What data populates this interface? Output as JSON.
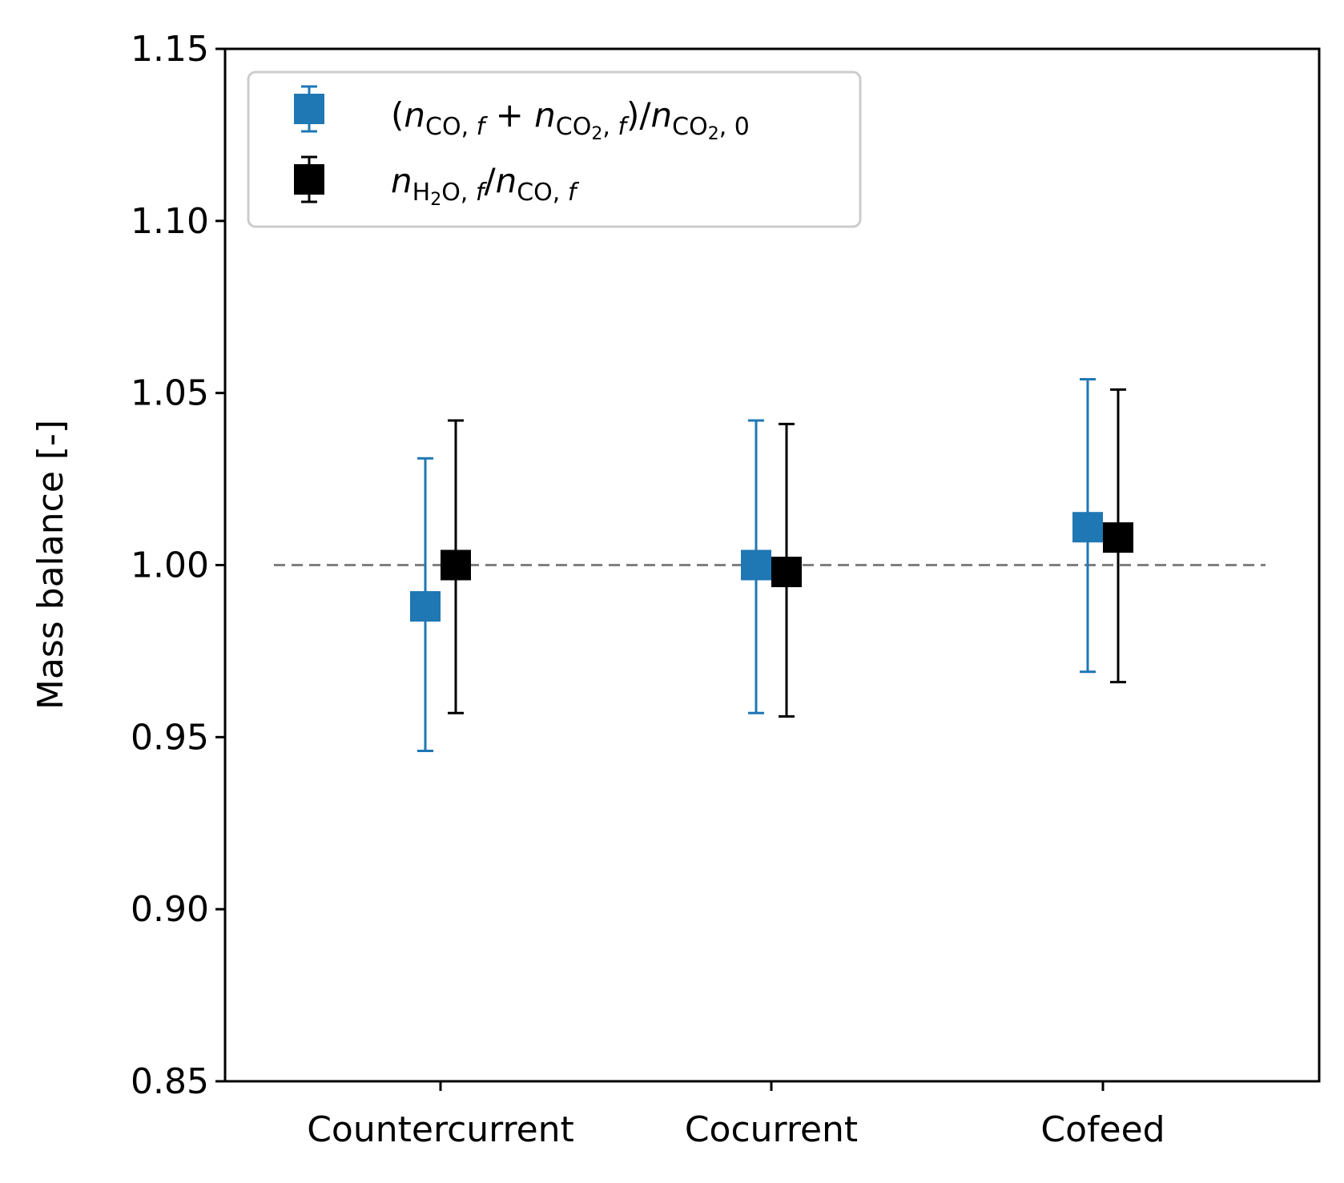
{
  "chart_data": {
    "type": "scatter",
    "subtype": "errorbar",
    "title": "",
    "xlabel": "",
    "ylabel": "Mass balance [-]",
    "categories": [
      "Countercurrent",
      "Cocurrent",
      "Cofeed"
    ],
    "ylim": [
      0.85,
      1.15
    ],
    "yticks": [
      "0.85",
      "0.90",
      "0.95",
      "1.00",
      "1.05",
      "1.10",
      "1.15"
    ],
    "reference_line": {
      "y": 1.0,
      "style": "dashed",
      "color": "#808080"
    },
    "grid": false,
    "legend_placement": "top-left",
    "series": [
      {
        "name": "(n_CO,f + n_CO2,f)/n_CO2,0",
        "color": "#1f77b4",
        "marker": "square",
        "values": [
          0.988,
          1.0,
          1.011
        ],
        "err_low": [
          0.946,
          0.957,
          0.969
        ],
        "err_high": [
          1.031,
          1.042,
          1.054
        ]
      },
      {
        "name": "n_H2O,f/n_CO,f",
        "color": "#000000",
        "marker": "square",
        "values": [
          1.0,
          0.998,
          1.008
        ],
        "err_low": [
          0.957,
          0.956,
          0.966
        ],
        "err_high": [
          1.042,
          1.041,
          1.051
        ]
      }
    ]
  }
}
